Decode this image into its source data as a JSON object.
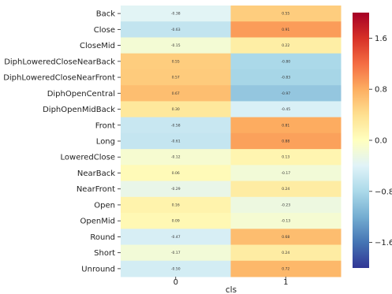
{
  "chart_data": {
    "type": "heatmap",
    "xlabel": "cls",
    "x_categories": [
      "0",
      "1"
    ],
    "y_categories": [
      "Back",
      "Close",
      "CloseMid",
      "DiphLoweredCloseNearBack",
      "DiphLoweredCloseNearFront",
      "DiphOpenCentral",
      "DiphOpenMidBack",
      "Front",
      "Long",
      "LoweredClose",
      "NearBack",
      "NearFront",
      "Open",
      "OpenMid",
      "Round",
      "Short",
      "Unround"
    ],
    "values": [
      [
        -0.38,
        0.55
      ],
      [
        -0.63,
        0.91
      ],
      [
        -0.15,
        0.22
      ],
      [
        0.55,
        -0.8
      ],
      [
        0.57,
        -0.83
      ],
      [
        0.67,
        -0.97
      ],
      [
        0.3,
        -0.45
      ],
      [
        -0.58,
        0.81
      ],
      [
        -0.61,
        0.88
      ],
      [
        -0.12,
        0.13
      ],
      [
        0.06,
        -0.17
      ],
      [
        -0.29,
        0.24
      ],
      [
        0.16,
        -0.23
      ],
      [
        0.09,
        -0.13
      ],
      [
        -0.47,
        0.68
      ],
      [
        -0.17,
        0.24
      ],
      [
        -0.5,
        0.72
      ]
    ],
    "value_labels": [
      [
        "-0.38",
        "0.55"
      ],
      [
        "-0.63",
        "0.91"
      ],
      [
        "-0.15",
        "0.22"
      ],
      [
        "0.55",
        "-0.80"
      ],
      [
        "0.57",
        "-0.83"
      ],
      [
        "0.67",
        "-0.97"
      ],
      [
        "0.30",
        "-0.45"
      ],
      [
        "-0.58",
        "0.81"
      ],
      [
        "-0.61",
        "0.88"
      ],
      [
        "-0.12",
        "0.13"
      ],
      [
        "0.06",
        "-0.17"
      ],
      [
        "-0.29",
        "0.24"
      ],
      [
        "0.16",
        "-0.23"
      ],
      [
        "0.09",
        "-0.13"
      ],
      [
        "-0.47",
        "0.68"
      ],
      [
        "-0.17",
        "0.24"
      ],
      [
        "-0.50",
        "0.72"
      ]
    ],
    "colorbar": {
      "colormap": "RdYlBu_r",
      "range": [
        -2,
        2
      ],
      "ticks": [
        1.6,
        0.8,
        0.0,
        -0.8,
        -1.6
      ],
      "tick_labels": [
        "1.6",
        "0.8",
        "0.0",
        "−0.8",
        "−1.6"
      ]
    },
    "grid": false,
    "legend": "colorbar-right"
  }
}
